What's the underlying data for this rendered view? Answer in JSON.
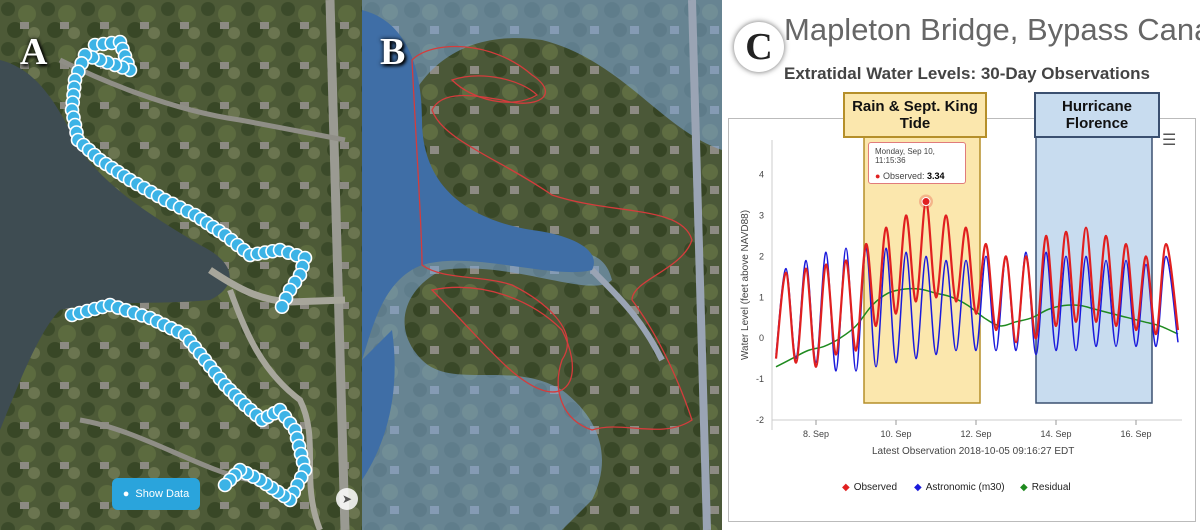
{
  "panel_a": {
    "letter": "A",
    "show_data_label": "Show Data"
  },
  "panel_b": {
    "letter": "B"
  },
  "panel_c": {
    "letter": "C",
    "title": "Mapleton Bridge, Bypass Canal",
    "subtitle": "Extratidal Water Levels: 30-Day Observations",
    "latest_observation": "Latest Observation 2018-10-05 09:16:27 EDT",
    "tooltip": {
      "time": "Monday, Sep 10, 11:15:36",
      "label": "Observed:",
      "value": "3.34"
    }
  },
  "colors": {
    "observed": "#e02020",
    "astronomic": "#1a1adb",
    "residual": "#1f8a1f",
    "rain_band": "#fbe7ad",
    "hurricane_band": "#c8dcef",
    "marker_blue": "#3cb3e6",
    "flood_blue": "#7fa9dc",
    "flood_outline": "#d43c3c"
  },
  "chart_data": {
    "type": "line",
    "ylabel": "Water Level (feet above NAVD88)",
    "xlabel": "",
    "ylim": [
      -2,
      4.6
    ],
    "xlim": [
      6.9,
      17.15
    ],
    "y_ticks": [
      -2,
      -1,
      0,
      1,
      2,
      3,
      4
    ],
    "x_ticks": [
      {
        "value": 8,
        "label": "8. Sep"
      },
      {
        "value": 10,
        "label": "10. Sep"
      },
      {
        "value": 12,
        "label": "12. Sep"
      },
      {
        "value": 14,
        "label": "14. Sep"
      },
      {
        "value": 16,
        "label": "16. Sep"
      }
    ],
    "bands": [
      {
        "name": "Rain & Sept. King Tide",
        "from": 9.2,
        "to": 12.1,
        "color": "#fbe7ad"
      },
      {
        "name": "Hurricane Florence",
        "from": 13.5,
        "to": 16.4,
        "color": "#c8dcef"
      }
    ],
    "series": [
      {
        "name": "Observed",
        "color": "#e02020",
        "points": [
          [
            7.0,
            -0.5
          ],
          [
            7.25,
            1.6
          ],
          [
            7.5,
            -0.6
          ],
          [
            7.75,
            1.7
          ],
          [
            8.0,
            -0.7
          ],
          [
            8.25,
            1.8
          ],
          [
            8.5,
            -0.4
          ],
          [
            8.75,
            1.9
          ],
          [
            9.0,
            -0.3
          ],
          [
            9.25,
            2.3
          ],
          [
            9.5,
            0.3
          ],
          [
            9.75,
            2.7
          ],
          [
            10.0,
            0.6
          ],
          [
            10.25,
            3.0
          ],
          [
            10.5,
            0.9
          ],
          [
            10.75,
            3.34
          ],
          [
            11.0,
            1.0
          ],
          [
            11.25,
            3.0
          ],
          [
            11.5,
            0.9
          ],
          [
            11.75,
            2.7
          ],
          [
            12.0,
            0.6
          ],
          [
            12.25,
            2.3
          ],
          [
            12.5,
            0.2
          ],
          [
            12.75,
            2.0
          ],
          [
            13.0,
            -0.1
          ],
          [
            13.25,
            2.0
          ],
          [
            13.5,
            0.0
          ],
          [
            13.75,
            2.5
          ],
          [
            14.0,
            0.3
          ],
          [
            14.25,
            2.6
          ],
          [
            14.5,
            0.4
          ],
          [
            14.75,
            2.7
          ],
          [
            15.0,
            0.4
          ],
          [
            15.25,
            2.5
          ],
          [
            15.5,
            0.3
          ],
          [
            15.75,
            2.3
          ],
          [
            16.0,
            0.2
          ],
          [
            16.25,
            2.0
          ],
          [
            16.5,
            0.1
          ],
          [
            16.75,
            2.3
          ],
          [
            17.05,
            0.2
          ]
        ]
      },
      {
        "name": "Astronomic (m30)",
        "color": "#1a1adb",
        "points": [
          [
            7.0,
            -0.4
          ],
          [
            7.25,
            1.7
          ],
          [
            7.5,
            -0.5
          ],
          [
            7.75,
            1.9
          ],
          [
            8.0,
            -0.6
          ],
          [
            8.25,
            2.1
          ],
          [
            8.5,
            -0.8
          ],
          [
            8.75,
            2.2
          ],
          [
            9.0,
            -0.8
          ],
          [
            9.25,
            2.2
          ],
          [
            9.5,
            -0.7
          ],
          [
            9.75,
            2.2
          ],
          [
            10.0,
            -0.6
          ],
          [
            10.25,
            2.1
          ],
          [
            10.5,
            -0.5
          ],
          [
            10.75,
            2.0
          ],
          [
            11.0,
            -0.4
          ],
          [
            11.25,
            1.9
          ],
          [
            11.5,
            -0.3
          ],
          [
            11.75,
            1.9
          ],
          [
            12.0,
            -0.3
          ],
          [
            12.25,
            2.0
          ],
          [
            12.5,
            -0.3
          ],
          [
            12.75,
            2.0
          ],
          [
            13.0,
            -0.3
          ],
          [
            13.25,
            2.1
          ],
          [
            13.5,
            -0.4
          ],
          [
            13.75,
            2.1
          ],
          [
            14.0,
            -0.3
          ],
          [
            14.25,
            2.0
          ],
          [
            14.5,
            -0.3
          ],
          [
            14.75,
            2.0
          ],
          [
            15.0,
            -0.2
          ],
          [
            15.25,
            1.9
          ],
          [
            15.5,
            -0.2
          ],
          [
            15.75,
            1.9
          ],
          [
            16.0,
            -0.2
          ],
          [
            16.25,
            1.8
          ],
          [
            16.5,
            -0.2
          ],
          [
            16.75,
            2.0
          ],
          [
            17.05,
            -0.1
          ]
        ]
      },
      {
        "name": "Residual",
        "color": "#1f8a1f",
        "points": [
          [
            7.0,
            -0.7
          ],
          [
            7.4,
            -0.5
          ],
          [
            7.8,
            -0.3
          ],
          [
            8.2,
            -0.2
          ],
          [
            8.6,
            0.0
          ],
          [
            9.0,
            0.3
          ],
          [
            9.4,
            0.8
          ],
          [
            9.8,
            1.1
          ],
          [
            10.2,
            1.2
          ],
          [
            10.6,
            1.2
          ],
          [
            11.0,
            1.1
          ],
          [
            11.4,
            1.0
          ],
          [
            11.8,
            0.8
          ],
          [
            12.2,
            0.5
          ],
          [
            12.6,
            0.3
          ],
          [
            13.0,
            0.4
          ],
          [
            13.4,
            0.5
          ],
          [
            13.8,
            0.7
          ],
          [
            14.2,
            0.8
          ],
          [
            14.6,
            0.8
          ],
          [
            15.0,
            0.7
          ],
          [
            15.4,
            0.6
          ],
          [
            15.8,
            0.5
          ],
          [
            16.2,
            0.4
          ],
          [
            16.6,
            0.3
          ],
          [
            17.05,
            0.1
          ]
        ]
      }
    ],
    "highlight_point": {
      "series": "Observed",
      "x": 10.75,
      "y": 3.34
    },
    "legend": [
      {
        "name": "Observed",
        "color": "#e02020"
      },
      {
        "name": "Astronomic (m30)",
        "color": "#1a1adb"
      },
      {
        "name": "Residual",
        "color": "#1f8a1f"
      }
    ],
    "legend_position": "bottom",
    "grid": false
  }
}
